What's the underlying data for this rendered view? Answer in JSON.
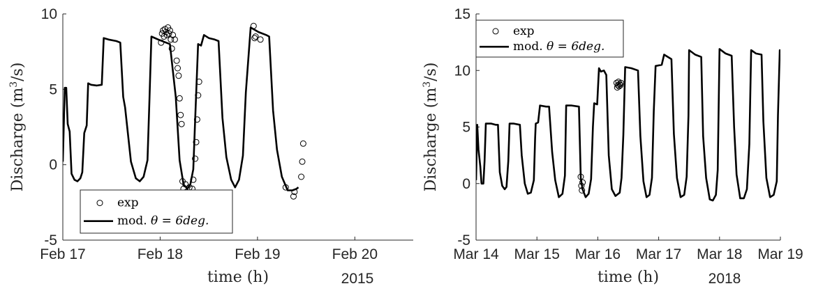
{
  "chart_data": [
    {
      "type": "line",
      "xlabel": "time (h)",
      "ylabel": "Discharge (m3/s)",
      "ylabel_main": "Discharge (m",
      "ylabel_sup": "3",
      "ylabel_tail": "/s)",
      "xaxis_year": "2015",
      "xlim": [
        0,
        3.6
      ],
      "ylim": [
        -5,
        10
      ],
      "xticks": [
        {
          "x": 0,
          "label": "Feb 17"
        },
        {
          "x": 1,
          "label": "Feb 18"
        },
        {
          "x": 2,
          "label": "Feb 19"
        },
        {
          "x": 3,
          "label": "Feb 20"
        }
      ],
      "yticks": [
        {
          "y": -5,
          "label": "-5"
        },
        {
          "y": 0,
          "label": "0"
        },
        {
          "y": 5,
          "label": "5"
        },
        {
          "y": 10,
          "label": "10"
        }
      ],
      "legend_position": "bottom-left",
      "series": [
        {
          "name": "exp",
          "kind": "scatter",
          "marker": "open-circle",
          "color": "#000000",
          "points": [
            [
              1.01,
              8.1
            ],
            [
              1.02,
              8.7
            ],
            [
              1.03,
              8.9
            ],
            [
              1.04,
              8.5
            ],
            [
              1.05,
              9.0
            ],
            [
              1.06,
              8.8
            ],
            [
              1.07,
              8.6
            ],
            [
              1.08,
              9.1
            ],
            [
              1.09,
              8.7
            ],
            [
              1.1,
              8.9
            ],
            [
              1.11,
              8.3
            ],
            [
              1.12,
              7.7
            ],
            [
              1.13,
              8.6
            ],
            [
              1.15,
              8.3
            ],
            [
              1.17,
              6.9
            ],
            [
              1.18,
              6.4
            ],
            [
              1.19,
              5.9
            ],
            [
              1.2,
              4.4
            ],
            [
              1.21,
              3.3
            ],
            [
              1.22,
              2.7
            ],
            [
              1.23,
              -1.1
            ],
            [
              1.24,
              -1.6
            ],
            [
              1.25,
              -2.0
            ],
            [
              1.26,
              -1.3
            ],
            [
              1.27,
              -1.8
            ],
            [
              1.3,
              -1.5
            ],
            [
              1.31,
              -1.9
            ],
            [
              1.33,
              -1.6
            ],
            [
              1.34,
              -1.0
            ],
            [
              1.36,
              0.4
            ],
            [
              1.37,
              1.5
            ],
            [
              1.38,
              3.0
            ],
            [
              1.39,
              4.6
            ],
            [
              1.4,
              5.5
            ],
            [
              1.96,
              9.2
            ],
            [
              1.97,
              8.4
            ],
            [
              1.98,
              8.5
            ],
            [
              2.03,
              8.3
            ],
            [
              2.29,
              -1.5
            ],
            [
              2.37,
              -2.1
            ],
            [
              2.38,
              -1.8
            ],
            [
              2.45,
              -0.8
            ],
            [
              2.46,
              0.2
            ],
            [
              2.47,
              1.4
            ]
          ]
        },
        {
          "name": "mod. θ = 6deg.",
          "name_prefix": "mod. ",
          "name_math": "θ = 6deg.",
          "kind": "line",
          "color": "#000000",
          "points": [
            [
              0,
              0.2
            ],
            [
              0.02,
              5.1
            ],
            [
              0.035,
              5.1
            ],
            [
              0.05,
              2.7
            ],
            [
              0.07,
              2.2
            ],
            [
              0.09,
              -0.6
            ],
            [
              0.12,
              -1.0
            ],
            [
              0.15,
              -1.1
            ],
            [
              0.18,
              -0.9
            ],
            [
              0.2,
              -0.5
            ],
            [
              0.22,
              2.1
            ],
            [
              0.245,
              2.6
            ],
            [
              0.26,
              5.4
            ],
            [
              0.29,
              5.3
            ],
            [
              0.35,
              5.25
            ],
            [
              0.4,
              5.3
            ],
            [
              0.42,
              8.4
            ],
            [
              0.47,
              8.3
            ],
            [
              0.55,
              8.2
            ],
            [
              0.59,
              8.1
            ],
            [
              0.62,
              4.5
            ],
            [
              0.64,
              3.8
            ],
            [
              0.7,
              0.2
            ],
            [
              0.75,
              -0.9
            ],
            [
              0.79,
              -1.1
            ],
            [
              0.83,
              -0.8
            ],
            [
              0.87,
              0.3
            ],
            [
              0.89,
              4.3
            ],
            [
              0.91,
              8.5
            ],
            [
              0.98,
              8.3
            ],
            [
              1.06,
              8.1
            ],
            [
              1.1,
              8.0
            ],
            [
              1.16,
              4.5
            ],
            [
              1.2,
              0.3
            ],
            [
              1.24,
              -1.3
            ],
            [
              1.28,
              -1.6
            ],
            [
              1.31,
              -1.3
            ],
            [
              1.34,
              -0.3
            ],
            [
              1.36,
              3.0
            ],
            [
              1.39,
              8.0
            ],
            [
              1.42,
              7.9
            ],
            [
              1.45,
              8.6
            ],
            [
              1.5,
              8.4
            ],
            [
              1.56,
              8.3
            ],
            [
              1.6,
              8.2
            ],
            [
              1.64,
              3.1
            ],
            [
              1.68,
              0.5
            ],
            [
              1.73,
              -1.0
            ],
            [
              1.77,
              -1.5
            ],
            [
              1.81,
              -1.0
            ],
            [
              1.85,
              0.6
            ],
            [
              1.88,
              4.8
            ],
            [
              1.93,
              9.1
            ],
            [
              2.01,
              8.8
            ],
            [
              2.09,
              8.6
            ],
            [
              2.12,
              8.5
            ],
            [
              2.16,
              3.6
            ],
            [
              2.2,
              1.0
            ],
            [
              2.25,
              -0.8
            ],
            [
              2.31,
              -1.7
            ],
            [
              2.36,
              -1.7
            ],
            [
              2.4,
              -1.6
            ],
            [
              2.42,
              -1.5
            ]
          ]
        }
      ]
    },
    {
      "type": "line",
      "xlabel": "time (h)",
      "ylabel": "Discharge (m3/s)",
      "ylabel_main": "Discharge (m",
      "ylabel_sup": "3",
      "ylabel_tail": "/s)",
      "xaxis_year": "2018",
      "xlim": [
        0,
        5
      ],
      "ylim": [
        -5,
        15
      ],
      "xticks": [
        {
          "x": 0,
          "label": "Mar 14"
        },
        {
          "x": 1,
          "label": "Mar 15"
        },
        {
          "x": 2,
          "label": "Mar 16"
        },
        {
          "x": 3,
          "label": "Mar 17"
        },
        {
          "x": 4,
          "label": "Mar 18"
        },
        {
          "x": 5,
          "label": "Mar 19"
        }
      ],
      "yticks": [
        {
          "y": -5,
          "label": "-5"
        },
        {
          "y": 0,
          "label": "0"
        },
        {
          "y": 5,
          "label": "5"
        },
        {
          "y": 10,
          "label": "10"
        },
        {
          "y": 15,
          "label": "15"
        }
      ],
      "legend_position": "top-left",
      "series": [
        {
          "name": "exp",
          "kind": "scatter",
          "marker": "open-circle",
          "color": "#000000",
          "points": [
            [
              1.72,
              0.6
            ],
            [
              1.73,
              -0.2
            ],
            [
              1.74,
              -0.6
            ],
            [
              1.75,
              0.1
            ],
            [
              2.31,
              8.9
            ],
            [
              2.32,
              8.5
            ],
            [
              2.33,
              8.7
            ],
            [
              2.34,
              9.0
            ],
            [
              2.35,
              8.6
            ],
            [
              2.36,
              8.8
            ],
            [
              2.37,
              8.7
            ],
            [
              2.38,
              8.9
            ]
          ]
        },
        {
          "name": "mod. θ = 6deg.",
          "name_prefix": "mod. ",
          "name_math": "θ = 6deg.",
          "kind": "line",
          "color": "#000000",
          "points": [
            [
              0,
              0.3
            ],
            [
              0.02,
              5.2
            ],
            [
              0.04,
              3.0
            ],
            [
              0.07,
              1.5
            ],
            [
              0.09,
              0.0
            ],
            [
              0.12,
              0.0
            ],
            [
              0.14,
              2.0
            ],
            [
              0.16,
              5.3
            ],
            [
              0.25,
              5.3
            ],
            [
              0.32,
              5.2
            ],
            [
              0.36,
              5.2
            ],
            [
              0.39,
              1.0
            ],
            [
              0.43,
              -0.2
            ],
            [
              0.47,
              -0.5
            ],
            [
              0.5,
              -0.3
            ],
            [
              0.53,
              2.0
            ],
            [
              0.55,
              5.3
            ],
            [
              0.62,
              5.3
            ],
            [
              0.72,
              5.2
            ],
            [
              0.75,
              2.5
            ],
            [
              0.8,
              0.0
            ],
            [
              0.85,
              -0.9
            ],
            [
              0.9,
              -0.8
            ],
            [
              0.95,
              0.3
            ],
            [
              0.97,
              4.0
            ],
            [
              0.98,
              5.3
            ],
            [
              1.02,
              5.4
            ],
            [
              1.05,
              6.9
            ],
            [
              1.15,
              6.8
            ],
            [
              1.2,
              6.8
            ],
            [
              1.25,
              2.8
            ],
            [
              1.3,
              0.3
            ],
            [
              1.36,
              -1.2
            ],
            [
              1.42,
              -0.9
            ],
            [
              1.46,
              0.7
            ],
            [
              1.48,
              6.9
            ],
            [
              1.57,
              6.9
            ],
            [
              1.69,
              6.8
            ],
            [
              1.72,
              0.5
            ],
            [
              1.75,
              -0.5
            ],
            [
              1.8,
              -1.2
            ],
            [
              1.85,
              -0.9
            ],
            [
              1.89,
              0.4
            ],
            [
              1.92,
              5.0
            ],
            [
              1.94,
              7.1
            ],
            [
              1.99,
              7.0
            ],
            [
              2.02,
              10.2
            ],
            [
              2.05,
              9.9
            ],
            [
              2.1,
              10.0
            ],
            [
              2.14,
              9.6
            ],
            [
              2.18,
              2.5
            ],
            [
              2.23,
              -0.5
            ],
            [
              2.29,
              -1.1
            ],
            [
              2.36,
              -0.8
            ],
            [
              2.39,
              0.5
            ],
            [
              2.42,
              4.3
            ],
            [
              2.45,
              10.3
            ],
            [
              2.55,
              10.2
            ],
            [
              2.66,
              10.0
            ],
            [
              2.7,
              4.2
            ],
            [
              2.75,
              0.2
            ],
            [
              2.8,
              -1.2
            ],
            [
              2.85,
              -1.0
            ],
            [
              2.89,
              0.5
            ],
            [
              2.92,
              6.4
            ],
            [
              2.95,
              10.4
            ],
            [
              3.05,
              10.5
            ],
            [
              3.09,
              11.4
            ],
            [
              3.18,
              11.1
            ],
            [
              3.21,
              11.0
            ],
            [
              3.25,
              4.4
            ],
            [
              3.3,
              0.5
            ],
            [
              3.36,
              -1.2
            ],
            [
              3.42,
              -1.0
            ],
            [
              3.46,
              0.6
            ],
            [
              3.49,
              6.0
            ],
            [
              3.5,
              11.8
            ],
            [
              3.6,
              11.4
            ],
            [
              3.7,
              11.2
            ],
            [
              3.73,
              4.2
            ],
            [
              3.78,
              0.5
            ],
            [
              3.84,
              -1.4
            ],
            [
              3.89,
              -1.5
            ],
            [
              3.94,
              -1.0
            ],
            [
              3.97,
              1.2
            ],
            [
              4.0,
              11.9
            ],
            [
              4.1,
              11.5
            ],
            [
              4.2,
              11.3
            ],
            [
              4.24,
              5.0
            ],
            [
              4.28,
              0.8
            ],
            [
              4.34,
              -1.3
            ],
            [
              4.4,
              -1.3
            ],
            [
              4.45,
              -0.5
            ],
            [
              4.49,
              3.5
            ],
            [
              4.52,
              11.8
            ],
            [
              4.6,
              11.5
            ],
            [
              4.69,
              11.4
            ],
            [
              4.72,
              5.5
            ],
            [
              4.77,
              0.5
            ],
            [
              4.83,
              -1.2
            ],
            [
              4.89,
              -1.0
            ],
            [
              4.94,
              0.2
            ],
            [
              4.96,
              6.0
            ],
            [
              4.99,
              11.8
            ],
            [
              5.0,
              11.5
            ]
          ]
        }
      ]
    }
  ]
}
